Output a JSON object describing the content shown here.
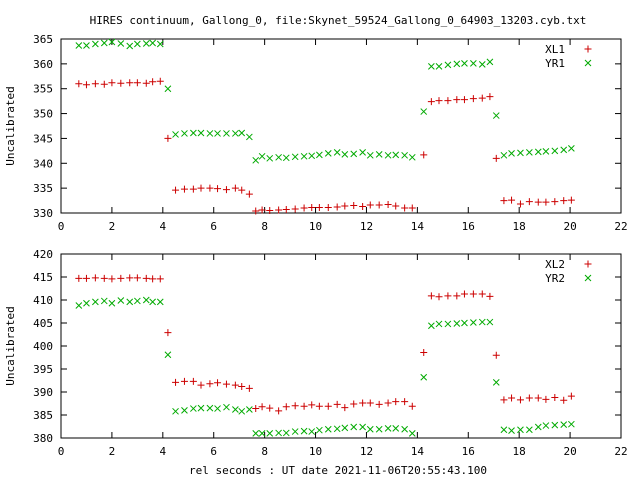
{
  "title": "HIRES continuum, Gallong_0, file:Skynet_59524_Gallong_0_64903_13203.cyb.txt",
  "xlabel": "rel seconds : UT date 2021-11-06T20:55:43.100",
  "colors": {
    "XL": "#cc0000",
    "YR": "#00aa00"
  },
  "chart_data": [
    {
      "type": "scatter",
      "ylabel": "Uncalibrated",
      "xlim": [
        0,
        22
      ],
      "ylim": [
        330,
        365
      ],
      "x_ticks": [
        0,
        2,
        4,
        6,
        8,
        10,
        12,
        14,
        16,
        18,
        20,
        22
      ],
      "y_ticks": [
        330,
        335,
        340,
        345,
        350,
        355,
        360,
        365
      ],
      "legend_position": "top-right",
      "series": [
        {
          "name": "XL1",
          "marker": "plus",
          "color_key": "XL",
          "x": [
            0.7,
            1.0,
            1.35,
            1.7,
            2.0,
            2.35,
            2.7,
            3.0,
            3.35,
            3.6,
            3.9,
            4.2,
            4.5,
            4.85,
            5.2,
            5.5,
            5.85,
            6.15,
            6.5,
            6.85,
            7.1,
            7.4,
            7.65,
            7.9,
            8.2,
            8.55,
            8.85,
            9.2,
            9.55,
            9.85,
            10.15,
            10.5,
            10.85,
            11.15,
            11.5,
            11.85,
            12.15,
            12.5,
            12.85,
            13.15,
            13.5,
            13.8,
            14.25,
            14.55,
            14.85,
            15.2,
            15.55,
            15.85,
            16.2,
            16.55,
            16.85,
            17.1,
            17.4,
            17.7,
            18.05,
            18.4,
            18.75,
            19.05,
            19.4,
            19.75,
            20.05
          ],
          "y": [
            356.0,
            355.8,
            356.0,
            355.9,
            356.2,
            356.1,
            356.2,
            356.2,
            356.1,
            356.4,
            356.5,
            345.0,
            334.6,
            334.8,
            334.8,
            335.0,
            335.0,
            334.9,
            334.7,
            335.0,
            334.6,
            333.8,
            330.4,
            330.6,
            330.5,
            330.6,
            330.7,
            330.8,
            331.0,
            331.1,
            331.1,
            331.1,
            331.2,
            331.4,
            331.5,
            331.3,
            331.6,
            331.6,
            331.7,
            331.4,
            331.0,
            331.0,
            341.7,
            352.4,
            352.6,
            352.6,
            352.8,
            352.8,
            353.0,
            353.1,
            353.4,
            341.0,
            332.5,
            332.6,
            331.8,
            332.3,
            332.2,
            332.2,
            332.3,
            332.5,
            332.6
          ]
        },
        {
          "name": "YR1",
          "marker": "x",
          "color_key": "YR",
          "x": [
            0.7,
            1.0,
            1.35,
            1.7,
            2.0,
            2.35,
            2.7,
            3.0,
            3.35,
            3.6,
            3.9,
            4.2,
            4.5,
            4.85,
            5.2,
            5.5,
            5.85,
            6.15,
            6.5,
            6.85,
            7.1,
            7.4,
            7.65,
            7.9,
            8.2,
            8.55,
            8.85,
            9.2,
            9.55,
            9.85,
            10.15,
            10.5,
            10.85,
            11.15,
            11.5,
            11.85,
            12.15,
            12.5,
            12.85,
            13.15,
            13.5,
            13.8,
            14.25,
            14.55,
            14.85,
            15.2,
            15.55,
            15.85,
            16.2,
            16.55,
            16.85,
            17.1,
            17.4,
            17.7,
            18.05,
            18.4,
            18.75,
            19.05,
            19.4,
            19.75,
            20.05
          ],
          "y": [
            363.7,
            363.7,
            364.0,
            364.2,
            364.4,
            364.1,
            363.6,
            364.0,
            364.1,
            364.2,
            364.0,
            355.0,
            345.8,
            346.0,
            346.1,
            346.1,
            346.0,
            346.0,
            346.0,
            346.0,
            346.1,
            345.3,
            340.6,
            341.4,
            341.0,
            341.2,
            341.1,
            341.3,
            341.4,
            341.5,
            341.7,
            342.0,
            342.2,
            341.8,
            341.9,
            342.2,
            341.6,
            341.8,
            341.6,
            341.7,
            341.6,
            341.2,
            350.4,
            359.5,
            359.5,
            359.8,
            360.0,
            360.1,
            360.1,
            359.9,
            360.4,
            349.6,
            341.6,
            342.0,
            342.1,
            342.2,
            342.3,
            342.4,
            342.5,
            342.7,
            343.0
          ]
        }
      ]
    },
    {
      "type": "scatter",
      "ylabel": "Uncalibrated",
      "xlim": [
        0,
        22
      ],
      "ylim": [
        380,
        420
      ],
      "x_ticks": [
        0,
        2,
        4,
        6,
        8,
        10,
        12,
        14,
        16,
        18,
        20,
        22
      ],
      "y_ticks": [
        380,
        385,
        390,
        395,
        400,
        405,
        410,
        415,
        420
      ],
      "legend_position": "top-right",
      "series": [
        {
          "name": "XL2",
          "marker": "plus",
          "color_key": "XL",
          "x": [
            0.7,
            1.0,
            1.35,
            1.7,
            2.0,
            2.35,
            2.7,
            3.0,
            3.35,
            3.6,
            3.9,
            4.2,
            4.5,
            4.85,
            5.2,
            5.5,
            5.85,
            6.15,
            6.5,
            6.85,
            7.1,
            7.4,
            7.65,
            7.9,
            8.2,
            8.55,
            8.85,
            9.2,
            9.55,
            9.85,
            10.15,
            10.5,
            10.85,
            11.15,
            11.5,
            11.85,
            12.15,
            12.5,
            12.85,
            13.15,
            13.5,
            13.8,
            14.25,
            14.55,
            14.85,
            15.2,
            15.55,
            15.85,
            16.2,
            16.55,
            16.85,
            17.1,
            17.4,
            17.7,
            18.05,
            18.4,
            18.75,
            19.05,
            19.4,
            19.75,
            20.05
          ],
          "y": [
            414.7,
            414.7,
            414.8,
            414.7,
            414.6,
            414.7,
            414.8,
            414.8,
            414.7,
            414.6,
            414.6,
            402.9,
            392.1,
            392.3,
            392.3,
            391.5,
            391.8,
            392.0,
            391.7,
            391.5,
            391.2,
            390.8,
            386.4,
            386.8,
            386.5,
            385.9,
            386.8,
            387.0,
            386.9,
            387.2,
            386.9,
            386.9,
            387.3,
            386.6,
            387.4,
            387.6,
            387.6,
            387.3,
            387.6,
            387.9,
            387.9,
            386.9,
            398.6,
            410.9,
            410.7,
            410.9,
            410.9,
            411.3,
            411.3,
            411.3,
            410.8,
            398.0,
            388.3,
            388.7,
            388.3,
            388.7,
            388.7,
            388.4,
            388.8,
            388.2,
            389.1
          ]
        },
        {
          "name": "YR2",
          "marker": "x",
          "color_key": "YR",
          "x": [
            0.7,
            1.0,
            1.35,
            1.7,
            2.0,
            2.35,
            2.7,
            3.0,
            3.35,
            3.6,
            3.9,
            4.2,
            4.5,
            4.85,
            5.2,
            5.5,
            5.85,
            6.15,
            6.5,
            6.85,
            7.1,
            7.4,
            7.65,
            7.9,
            8.2,
            8.55,
            8.85,
            9.2,
            9.55,
            9.85,
            10.15,
            10.5,
            10.85,
            11.15,
            11.5,
            11.85,
            12.15,
            12.5,
            12.85,
            13.15,
            13.5,
            13.8,
            14.25,
            14.55,
            14.85,
            15.2,
            15.55,
            15.85,
            16.2,
            16.55,
            16.85,
            17.1,
            17.4,
            17.7,
            18.05,
            18.4,
            18.75,
            19.05,
            19.4,
            19.75,
            20.05
          ],
          "y": [
            408.8,
            409.3,
            409.6,
            409.8,
            409.3,
            409.9,
            409.6,
            409.8,
            410.0,
            409.6,
            409.6,
            398.1,
            385.8,
            386.0,
            386.4,
            386.5,
            386.5,
            386.4,
            386.7,
            386.2,
            385.8,
            386.2,
            381.0,
            381.0,
            381.0,
            381.1,
            381.1,
            381.4,
            381.5,
            381.4,
            381.7,
            381.9,
            382.0,
            382.2,
            382.4,
            382.4,
            381.9,
            381.9,
            382.1,
            382.1,
            381.9,
            381.0,
            393.2,
            404.4,
            404.8,
            404.8,
            404.9,
            405.0,
            405.1,
            405.2,
            405.2,
            392.1,
            381.8,
            381.6,
            381.8,
            381.8,
            382.4,
            382.7,
            382.8,
            382.9,
            383.0
          ]
        }
      ]
    }
  ]
}
